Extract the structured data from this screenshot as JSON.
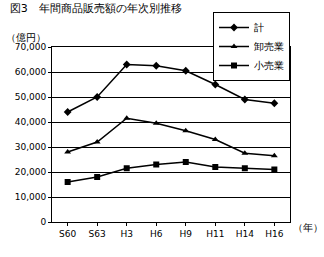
{
  "chart_data": {
    "type": "line",
    "title": "図3　年間商品販売額の年次別推移",
    "y_label": "（億円）",
    "x_label": "（年）",
    "categories": [
      "S60",
      "S63",
      "H3",
      "H6",
      "H9",
      "H11",
      "H14",
      "H16"
    ],
    "series": [
      {
        "name": "計",
        "color": "#000000",
        "marker": "diamond",
        "line_style": "solid",
        "values": [
          44000,
          50000,
          63000,
          62500,
          60500,
          55000,
          49000,
          47500
        ]
      },
      {
        "name": "卸売業",
        "color": "#000000",
        "marker": "triangle",
        "line_style": "solid",
        "values": [
          28000,
          32000,
          41500,
          39500,
          36500,
          33000,
          27500,
          26500
        ]
      },
      {
        "name": "小売業",
        "color": "#000000",
        "marker": "square",
        "line_style": "solid",
        "values": [
          16000,
          18000,
          21500,
          23000,
          24000,
          22000,
          21500,
          21000
        ]
      }
    ],
    "ylim": [
      0,
      70000
    ],
    "yticks": [
      0,
      {
        "value": 10000,
        "label": "10,000"
      },
      {
        "value": 20000,
        "label": "20,000"
      },
      {
        "value": 30000,
        "label": "30,000"
      },
      {
        "value": 40000,
        "label": "40,000"
      },
      {
        "value": 50000,
        "label": "50,000"
      },
      {
        "value": 60000,
        "label": "60,000"
      },
      {
        "value": 70000,
        "label": "70,000"
      }
    ],
    "grid": true,
    "legend": "top right"
  }
}
